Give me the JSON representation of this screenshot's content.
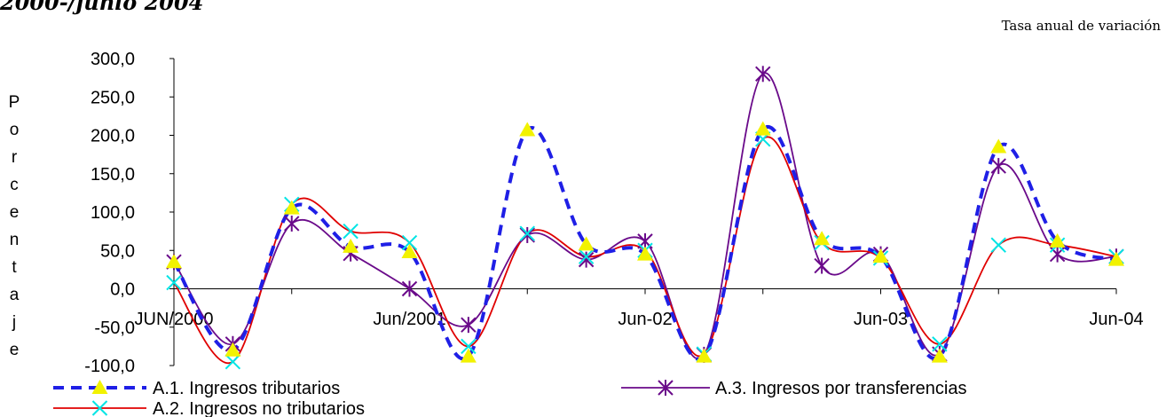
{
  "header": {
    "top_text": "2000-/junio 2004",
    "subtitle": "Tasa anual de variación"
  },
  "chart_data": {
    "type": "line",
    "ylabel": "Porcentaje",
    "ylim": [
      -100,
      300
    ],
    "yticks": [
      300,
      250,
      200,
      150,
      100,
      50,
      0,
      -50,
      -100
    ],
    "ytick_labels": [
      "300,0",
      "250,0",
      "200,0",
      "150,0",
      "100,0",
      "50,0",
      "0,0",
      "-50,0",
      "-100,0"
    ],
    "x_count": 17,
    "xtick_labels": [
      {
        "index": 0,
        "label": "JUN/2000"
      },
      {
        "index": 4,
        "label": "Jun/2001"
      },
      {
        "index": 8,
        "label": "Jun-02"
      },
      {
        "index": 12,
        "label": "Jun-03"
      },
      {
        "index": 16,
        "label": "Jun-04"
      }
    ],
    "grid": false,
    "legend_position": "bottom",
    "series": [
      {
        "name": "A.1. Ingresos tributarios",
        "color": "#1f1fe6",
        "style": "dashed",
        "marker": "triangle",
        "marker_color": "#f2f200",
        "values": [
          35,
          -80,
          105,
          55,
          48,
          -88,
          207,
          58,
          45,
          -88,
          208,
          65,
          42,
          -88,
          185,
          62,
          38
        ]
      },
      {
        "name": "A.2. Ingresos no tributarios",
        "color": "#e00000",
        "style": "solid",
        "marker": "x",
        "marker_color": "#00e5e5",
        "values": [
          8,
          -95,
          110,
          75,
          60,
          -75,
          72,
          42,
          50,
          -85,
          195,
          60,
          40,
          -72,
          57,
          57,
          42
        ]
      },
      {
        "name": "A.3. Ingresos por transferencias",
        "color": "#6a0a8a",
        "style": "solid",
        "marker": "star",
        "marker_color": "#6a0a8a",
        "values": [
          35,
          -72,
          85,
          46,
          0,
          -47,
          70,
          38,
          62,
          -86,
          280,
          30,
          45,
          -85,
          160,
          45,
          42
        ]
      }
    ]
  }
}
